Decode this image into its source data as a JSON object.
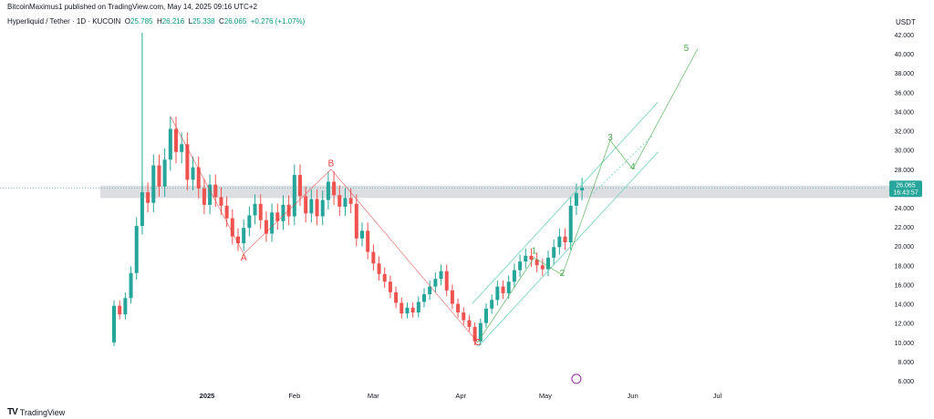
{
  "header": {
    "published": "BitcoinMaximus1 published on TradingView.com, May 14, 2025 09:16 UTC+2"
  },
  "legend": {
    "symbol": "Hyperliquid / Tether · 1D · KUCOIN",
    "open_label": "O",
    "open": "25.785",
    "high_label": "H",
    "high": "26.216",
    "low_label": "L",
    "low": "25.338",
    "close_label": "C",
    "close": "26.065",
    "change": "+0.276 (+1.07%)"
  },
  "axis_currency": "USDT",
  "price_tag": {
    "price": "26.065",
    "countdown": "16:43:57"
  },
  "footer": {
    "brand": "TradingView"
  },
  "colors": {
    "up": "#26a69a",
    "down": "#ef5350",
    "zone": "#b2b5be",
    "wave_green": "#4caf50",
    "wave_red": "#e53935",
    "channel": "#7ed6c4"
  },
  "chart_data": {
    "type": "candlestick",
    "x_ticks": [
      "2025",
      "Feb",
      "Mar",
      "Apr",
      "May",
      "Jun",
      "Jul"
    ],
    "y_ticks": [
      "6.000",
      "8.000",
      "10.000",
      "12.000",
      "14.000",
      "16.000",
      "18.000",
      "20.000",
      "22.000",
      "24.000",
      "26.000",
      "28.000",
      "30.000",
      "32.000",
      "34.000",
      "36.000",
      "38.000",
      "40.000",
      "42.000"
    ],
    "ylim": [
      6,
      42
    ],
    "resistance_zone": [
      25.0,
      26.3
    ],
    "current_price": 26.065,
    "wave_labels": [
      {
        "label": "A",
        "date": "2025-01-14",
        "price": 18.5
      },
      {
        "label": "B",
        "date": "2025-02-14",
        "price": 28.3
      },
      {
        "label": "C",
        "date": "2025-04-07",
        "price": 9.7
      },
      {
        "label": "1",
        "date": "2025-04-27",
        "price": 19.2
      },
      {
        "label": "2",
        "date": "2025-05-07",
        "price": 16.9
      },
      {
        "label": "3",
        "date": "2025-05-24",
        "price": 31.0
      },
      {
        "label": "4",
        "date": "2025-06-01",
        "price": 28.0
      },
      {
        "label": "5",
        "date": "2025-06-20",
        "price": 40.3
      }
    ],
    "candles_close_path": [
      [
        "2024-11-29",
        10.0,
        13.8
      ],
      [
        "2024-12-01",
        13.8,
        12.9
      ],
      [
        "2024-12-03",
        12.9,
        14.6
      ],
      [
        "2024-12-05",
        14.6,
        17.2
      ],
      [
        "2024-12-07",
        17.2,
        22.1
      ],
      [
        "2024-12-09",
        22.1,
        25.6
      ],
      [
        "2024-12-11",
        25.6,
        24.5
      ],
      [
        "2024-12-13",
        24.5,
        28.4
      ],
      [
        "2024-12-15",
        28.4,
        26.2
      ],
      [
        "2024-12-17",
        26.2,
        29.0
      ],
      [
        "2024-12-19",
        29.0,
        32.2
      ],
      [
        "2024-12-21",
        32.2,
        29.8
      ],
      [
        "2024-12-23",
        29.8,
        30.6
      ],
      [
        "2024-12-25",
        30.6,
        26.9
      ],
      [
        "2024-12-27",
        26.9,
        28.2
      ],
      [
        "2024-12-29",
        28.2,
        26.0
      ],
      [
        "2024-12-31",
        26.0,
        24.3
      ],
      [
        "2025-01-02",
        24.3,
        26.4
      ],
      [
        "2025-01-04",
        26.4,
        25.1
      ],
      [
        "2025-01-06",
        25.1,
        24.2
      ],
      [
        "2025-01-08",
        24.2,
        22.9
      ],
      [
        "2025-01-10",
        22.9,
        21.0
      ],
      [
        "2025-01-12",
        21.0,
        20.3
      ],
      [
        "2025-01-14",
        20.3,
        21.9
      ],
      [
        "2025-01-16",
        21.9,
        23.2
      ],
      [
        "2025-01-18",
        23.2,
        24.4
      ],
      [
        "2025-01-20",
        24.4,
        22.7
      ],
      [
        "2025-01-22",
        22.7,
        21.3
      ],
      [
        "2025-01-24",
        21.3,
        23.5
      ],
      [
        "2025-01-26",
        23.5,
        22.6
      ],
      [
        "2025-01-28",
        22.6,
        24.3
      ],
      [
        "2025-01-30",
        24.3,
        23.1
      ],
      [
        "2025-02-01",
        23.1,
        27.4
      ],
      [
        "2025-02-03",
        27.4,
        25.2
      ],
      [
        "2025-02-05",
        25.2,
        23.4
      ],
      [
        "2025-02-07",
        23.4,
        24.9
      ],
      [
        "2025-02-09",
        24.9,
        23.1
      ],
      [
        "2025-02-11",
        23.1,
        24.8
      ],
      [
        "2025-02-13",
        24.8,
        26.7
      ],
      [
        "2025-02-15",
        26.7,
        25.3
      ],
      [
        "2025-02-17",
        25.3,
        24.1
      ],
      [
        "2025-02-19",
        24.1,
        25.0
      ],
      [
        "2025-02-21",
        25.0,
        24.4
      ],
      [
        "2025-02-23",
        24.4,
        20.8
      ],
      [
        "2025-02-25",
        20.8,
        21.6
      ],
      [
        "2025-02-27",
        21.6,
        19.4
      ],
      [
        "2025-03-01",
        19.4,
        18.2
      ],
      [
        "2025-03-03",
        18.2,
        17.1
      ],
      [
        "2025-03-05",
        17.1,
        16.3
      ],
      [
        "2025-03-07",
        16.3,
        15.2
      ],
      [
        "2025-03-09",
        15.2,
        14.1
      ],
      [
        "2025-03-11",
        14.1,
        13.0
      ],
      [
        "2025-03-13",
        13.0,
        13.6
      ],
      [
        "2025-03-15",
        13.6,
        13.1
      ],
      [
        "2025-03-17",
        13.1,
        14.2
      ],
      [
        "2025-03-19",
        14.2,
        15.0
      ],
      [
        "2025-03-21",
        15.0,
        15.8
      ],
      [
        "2025-03-23",
        15.8,
        16.6
      ],
      [
        "2025-03-25",
        16.6,
        17.4
      ],
      [
        "2025-03-27",
        17.4,
        15.4
      ],
      [
        "2025-03-29",
        15.4,
        14.0
      ],
      [
        "2025-03-31",
        14.0,
        13.1
      ],
      [
        "2025-04-02",
        13.1,
        12.3
      ],
      [
        "2025-04-04",
        12.3,
        11.6
      ],
      [
        "2025-04-06",
        11.6,
        10.1
      ],
      [
        "2025-04-08",
        10.1,
        12.0
      ],
      [
        "2025-04-10",
        12.0,
        13.5
      ],
      [
        "2025-04-12",
        13.5,
        14.4
      ],
      [
        "2025-04-14",
        14.4,
        15.8
      ],
      [
        "2025-04-16",
        15.8,
        15.1
      ],
      [
        "2025-04-18",
        15.1,
        16.3
      ],
      [
        "2025-04-20",
        16.3,
        17.5
      ],
      [
        "2025-04-22",
        17.5,
        18.4
      ],
      [
        "2025-04-24",
        18.4,
        19.0
      ],
      [
        "2025-04-26",
        19.0,
        18.6
      ],
      [
        "2025-04-28",
        18.6,
        18.0
      ],
      [
        "2025-04-30",
        18.0,
        17.6
      ],
      [
        "2025-05-02",
        17.6,
        18.8
      ],
      [
        "2025-05-04",
        18.8,
        19.9
      ],
      [
        "2025-05-06",
        19.9,
        21.0
      ],
      [
        "2025-05-08",
        21.0,
        20.4
      ],
      [
        "2025-05-10",
        20.4,
        24.2
      ],
      [
        "2025-05-12",
        24.2,
        25.5
      ],
      [
        "2025-05-14",
        25.8,
        26.065
      ]
    ]
  }
}
